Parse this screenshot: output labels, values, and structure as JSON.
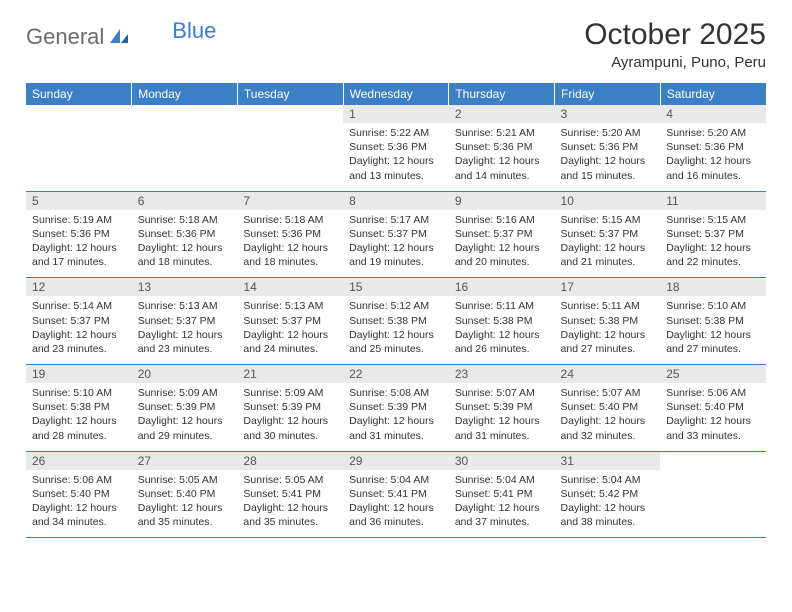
{
  "logo": {
    "part1": "General",
    "part2": "Blue"
  },
  "title": "October 2025",
  "location": "Ayrampuni, Puno, Peru",
  "colors": {
    "header_bg": "#3b7fc4",
    "header_text": "#ffffff",
    "daynum_bg": "#e9e9e9",
    "border": "#3b7fc4",
    "logo_gray": "#6b6b6b",
    "logo_blue": "#3b7fc4"
  },
  "weekdays": [
    "Sunday",
    "Monday",
    "Tuesday",
    "Wednesday",
    "Thursday",
    "Friday",
    "Saturday"
  ],
  "weeks": [
    [
      null,
      null,
      null,
      {
        "n": "1",
        "sr": "5:22 AM",
        "ss": "5:36 PM",
        "dl": "12 hours and 13 minutes."
      },
      {
        "n": "2",
        "sr": "5:21 AM",
        "ss": "5:36 PM",
        "dl": "12 hours and 14 minutes."
      },
      {
        "n": "3",
        "sr": "5:20 AM",
        "ss": "5:36 PM",
        "dl": "12 hours and 15 minutes."
      },
      {
        "n": "4",
        "sr": "5:20 AM",
        "ss": "5:36 PM",
        "dl": "12 hours and 16 minutes."
      }
    ],
    [
      {
        "n": "5",
        "sr": "5:19 AM",
        "ss": "5:36 PM",
        "dl": "12 hours and 17 minutes."
      },
      {
        "n": "6",
        "sr": "5:18 AM",
        "ss": "5:36 PM",
        "dl": "12 hours and 18 minutes."
      },
      {
        "n": "7",
        "sr": "5:18 AM",
        "ss": "5:36 PM",
        "dl": "12 hours and 18 minutes."
      },
      {
        "n": "8",
        "sr": "5:17 AM",
        "ss": "5:37 PM",
        "dl": "12 hours and 19 minutes."
      },
      {
        "n": "9",
        "sr": "5:16 AM",
        "ss": "5:37 PM",
        "dl": "12 hours and 20 minutes."
      },
      {
        "n": "10",
        "sr": "5:15 AM",
        "ss": "5:37 PM",
        "dl": "12 hours and 21 minutes."
      },
      {
        "n": "11",
        "sr": "5:15 AM",
        "ss": "5:37 PM",
        "dl": "12 hours and 22 minutes."
      }
    ],
    [
      {
        "n": "12",
        "sr": "5:14 AM",
        "ss": "5:37 PM",
        "dl": "12 hours and 23 minutes."
      },
      {
        "n": "13",
        "sr": "5:13 AM",
        "ss": "5:37 PM",
        "dl": "12 hours and 23 minutes."
      },
      {
        "n": "14",
        "sr": "5:13 AM",
        "ss": "5:37 PM",
        "dl": "12 hours and 24 minutes."
      },
      {
        "n": "15",
        "sr": "5:12 AM",
        "ss": "5:38 PM",
        "dl": "12 hours and 25 minutes."
      },
      {
        "n": "16",
        "sr": "5:11 AM",
        "ss": "5:38 PM",
        "dl": "12 hours and 26 minutes."
      },
      {
        "n": "17",
        "sr": "5:11 AM",
        "ss": "5:38 PM",
        "dl": "12 hours and 27 minutes."
      },
      {
        "n": "18",
        "sr": "5:10 AM",
        "ss": "5:38 PM",
        "dl": "12 hours and 27 minutes."
      }
    ],
    [
      {
        "n": "19",
        "sr": "5:10 AM",
        "ss": "5:38 PM",
        "dl": "12 hours and 28 minutes."
      },
      {
        "n": "20",
        "sr": "5:09 AM",
        "ss": "5:39 PM",
        "dl": "12 hours and 29 minutes."
      },
      {
        "n": "21",
        "sr": "5:09 AM",
        "ss": "5:39 PM",
        "dl": "12 hours and 30 minutes."
      },
      {
        "n": "22",
        "sr": "5:08 AM",
        "ss": "5:39 PM",
        "dl": "12 hours and 31 minutes."
      },
      {
        "n": "23",
        "sr": "5:07 AM",
        "ss": "5:39 PM",
        "dl": "12 hours and 31 minutes."
      },
      {
        "n": "24",
        "sr": "5:07 AM",
        "ss": "5:40 PM",
        "dl": "12 hours and 32 minutes."
      },
      {
        "n": "25",
        "sr": "5:06 AM",
        "ss": "5:40 PM",
        "dl": "12 hours and 33 minutes."
      }
    ],
    [
      {
        "n": "26",
        "sr": "5:06 AM",
        "ss": "5:40 PM",
        "dl": "12 hours and 34 minutes."
      },
      {
        "n": "27",
        "sr": "5:05 AM",
        "ss": "5:40 PM",
        "dl": "12 hours and 35 minutes."
      },
      {
        "n": "28",
        "sr": "5:05 AM",
        "ss": "5:41 PM",
        "dl": "12 hours and 35 minutes."
      },
      {
        "n": "29",
        "sr": "5:04 AM",
        "ss": "5:41 PM",
        "dl": "12 hours and 36 minutes."
      },
      {
        "n": "30",
        "sr": "5:04 AM",
        "ss": "5:41 PM",
        "dl": "12 hours and 37 minutes."
      },
      {
        "n": "31",
        "sr": "5:04 AM",
        "ss": "5:42 PM",
        "dl": "12 hours and 38 minutes."
      },
      null
    ]
  ],
  "labels": {
    "sunrise": "Sunrise:",
    "sunset": "Sunset:",
    "daylight": "Daylight:"
  }
}
